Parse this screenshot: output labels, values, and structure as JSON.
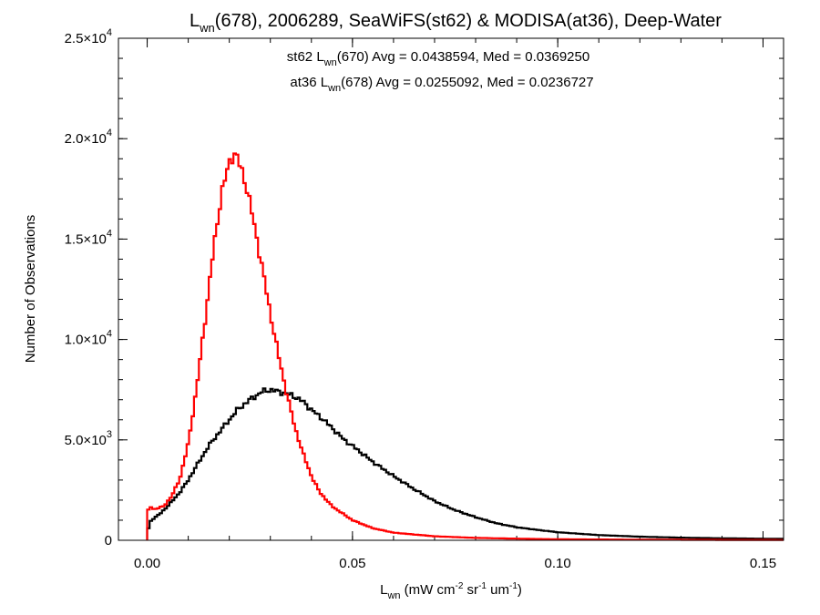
{
  "chart_data": {
    "type": "line",
    "title": {
      "prefix": "L",
      "sub": "wn",
      "suffix": "(678), 2006289, SeaWiFS(st62) & MODISA(at36), Deep-Water"
    },
    "annotations": [
      {
        "prefix": "st62 L",
        "sub": "wn",
        "suffix": "(670) Avg = 0.0438594, Med = 0.0369250",
        "color": "#000000"
      },
      {
        "prefix": "at36 L",
        "sub": "wn",
        "suffix": "(678) Avg = 0.0255092, Med = 0.0236727",
        "color": "#ff0000"
      }
    ],
    "xlabel": {
      "base": "L",
      "sub": "wn",
      "parts": [
        {
          "text": " (mW cm",
          "sup": "-2"
        },
        {
          "text": " sr",
          "sup": "-1"
        },
        {
          "text": " um",
          "sup": "-1"
        },
        {
          "text": ")"
        }
      ]
    },
    "ylabel": "Number of Observations",
    "xlim": [
      -0.007,
      0.155
    ],
    "ylim": [
      0,
      25000
    ],
    "xticks": [
      {
        "value": 0.0,
        "label": "0.00"
      },
      {
        "value": 0.05,
        "label": "0.05"
      },
      {
        "value": 0.1,
        "label": "0.10"
      },
      {
        "value": 0.15,
        "label": "0.15"
      }
    ],
    "yticks": [
      {
        "value": 0,
        "mant": "0",
        "exp": ""
      },
      {
        "value": 5000,
        "mant": "5.0×10",
        "exp": "3"
      },
      {
        "value": 10000,
        "mant": "1.0×10",
        "exp": "4"
      },
      {
        "value": 15000,
        "mant": "1.5×10",
        "exp": "4"
      },
      {
        "value": 20000,
        "mant": "2.0×10",
        "exp": "4"
      },
      {
        "value": 25000,
        "mant": "2.5×10",
        "exp": "4"
      }
    ],
    "x_minor_step": 0.01,
    "y_minor_step": 1000,
    "bin_width": 0.0006,
    "series": [
      {
        "color": "#000000",
        "points": [
          [
            0.0,
            0
          ],
          [
            0.0004,
            800
          ],
          [
            0.001,
            1000
          ],
          [
            0.003,
            1300
          ],
          [
            0.005,
            1700
          ],
          [
            0.008,
            2400
          ],
          [
            0.01,
            3000
          ],
          [
            0.012,
            3700
          ],
          [
            0.015,
            4700
          ],
          [
            0.018,
            5500
          ],
          [
            0.02,
            6000
          ],
          [
            0.022,
            6500
          ],
          [
            0.025,
            7000
          ],
          [
            0.028,
            7400
          ],
          [
            0.03,
            7500
          ],
          [
            0.032,
            7400
          ],
          [
            0.034,
            7300
          ],
          [
            0.036,
            7150
          ],
          [
            0.038,
            6900
          ],
          [
            0.04,
            6500
          ],
          [
            0.043,
            6000
          ],
          [
            0.045,
            5600
          ],
          [
            0.048,
            5000
          ],
          [
            0.05,
            4700
          ],
          [
            0.055,
            3900
          ],
          [
            0.06,
            3200
          ],
          [
            0.065,
            2550
          ],
          [
            0.07,
            1950
          ],
          [
            0.075,
            1500
          ],
          [
            0.08,
            1150
          ],
          [
            0.085,
            850
          ],
          [
            0.09,
            650
          ],
          [
            0.095,
            520
          ],
          [
            0.1,
            400
          ],
          [
            0.11,
            260
          ],
          [
            0.12,
            180
          ],
          [
            0.13,
            130
          ],
          [
            0.14,
            100
          ],
          [
            0.15,
            80
          ],
          [
            0.155,
            70
          ]
        ]
      },
      {
        "color": "#ff0000",
        "points": [
          [
            0.0,
            0
          ],
          [
            0.0004,
            2000
          ],
          [
            0.001,
            1600
          ],
          [
            0.002,
            1550
          ],
          [
            0.004,
            1700
          ],
          [
            0.006,
            2200
          ],
          [
            0.008,
            3100
          ],
          [
            0.01,
            4800
          ],
          [
            0.012,
            7500
          ],
          [
            0.014,
            10800
          ],
          [
            0.016,
            14200
          ],
          [
            0.018,
            17200
          ],
          [
            0.02,
            18800
          ],
          [
            0.021,
            19300
          ],
          [
            0.022,
            19000
          ],
          [
            0.024,
            17800
          ],
          [
            0.026,
            15800
          ],
          [
            0.028,
            13600
          ],
          [
            0.03,
            11300
          ],
          [
            0.032,
            9200
          ],
          [
            0.034,
            7300
          ],
          [
            0.036,
            5600
          ],
          [
            0.038,
            4300
          ],
          [
            0.04,
            3200
          ],
          [
            0.042,
            2400
          ],
          [
            0.045,
            1700
          ],
          [
            0.05,
            1000
          ],
          [
            0.055,
            600
          ],
          [
            0.06,
            380
          ],
          [
            0.07,
            200
          ],
          [
            0.08,
            120
          ],
          [
            0.09,
            80
          ],
          [
            0.1,
            50
          ],
          [
            0.12,
            30
          ],
          [
            0.14,
            20
          ],
          [
            0.155,
            15
          ]
        ]
      }
    ]
  }
}
